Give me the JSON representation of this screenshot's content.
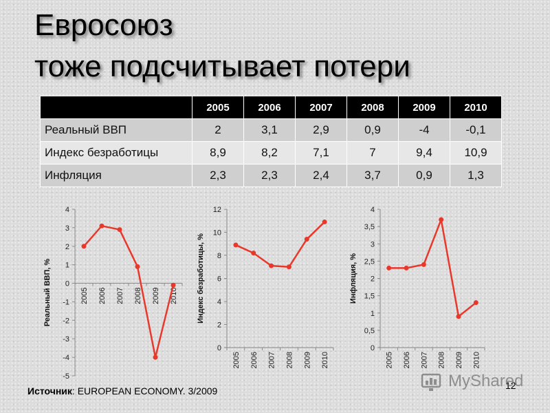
{
  "title_line1": "Евросоюз",
  "title_line2": "тоже подсчитывает потери",
  "table": {
    "header_blank": "",
    "years": [
      "2005",
      "2006",
      "2007",
      "2008",
      "2009",
      "2010"
    ],
    "rows": [
      {
        "label": "Реальный ВВП",
        "values": [
          "2",
          "3,1",
          "2,9",
          "0,9",
          "-4",
          "-0,1"
        ]
      },
      {
        "label": "Индекс безработицы",
        "values": [
          "8,9",
          "8,2",
          "7,1",
          "7",
          "9,4",
          "10,9"
        ]
      },
      {
        "label": "Инфляция",
        "values": [
          "2,3",
          "2,3",
          "2,4",
          "3,7",
          "0,9",
          "1,3"
        ]
      }
    ]
  },
  "chart_data": [
    {
      "type": "line",
      "ylabel": "Реальный ВВП, %",
      "categories": [
        "2005",
        "2006",
        "2007",
        "2008",
        "2009",
        "2010"
      ],
      "values": [
        2,
        3.1,
        2.9,
        0.9,
        -4,
        -0.1
      ],
      "ylim": [
        -5,
        4
      ],
      "yticks": [
        4,
        3,
        2,
        1,
        0,
        -1,
        -2,
        -3,
        -4,
        -5
      ],
      "ytick_labels": [
        "4",
        "3",
        "2",
        "1",
        "0",
        "-1",
        "-2",
        "-3",
        "-4",
        "-5"
      ],
      "xlabel_position": "at zero line",
      "line_color": "#e8382b"
    },
    {
      "type": "line",
      "ylabel": "Индекс безработицы, %",
      "categories": [
        "2005",
        "2006",
        "2007",
        "2008",
        "2009",
        "2010"
      ],
      "values": [
        8.9,
        8.2,
        7.1,
        7,
        9.4,
        10.9
      ],
      "ylim": [
        0,
        12
      ],
      "yticks": [
        12,
        10,
        8,
        6,
        4,
        2,
        0
      ],
      "ytick_labels": [
        "12",
        "10",
        "8",
        "6",
        "4",
        "2",
        "0"
      ],
      "xlabel_position": "bottom",
      "line_color": "#e8382b"
    },
    {
      "type": "line",
      "ylabel": "Инфляция, %",
      "categories": [
        "2005",
        "2006",
        "2007",
        "2008",
        "2009",
        "2010"
      ],
      "values": [
        2.3,
        2.3,
        2.4,
        3.7,
        0.9,
        1.3
      ],
      "ylim": [
        0,
        4
      ],
      "yticks": [
        4,
        3.5,
        3,
        2.5,
        2,
        1.5,
        1,
        0.5,
        0
      ],
      "ytick_labels": [
        "4",
        "3,5",
        "3",
        "2,5",
        "2",
        "1,5",
        "1",
        "0,5",
        "0"
      ],
      "xlabel_position": "bottom",
      "line_color": "#e8382b"
    }
  ],
  "source_label": "Источник",
  "source_text": ": EUROPEAN ECONOMY. 3/2009",
  "page_number": "12",
  "watermark_text": "MyShared"
}
